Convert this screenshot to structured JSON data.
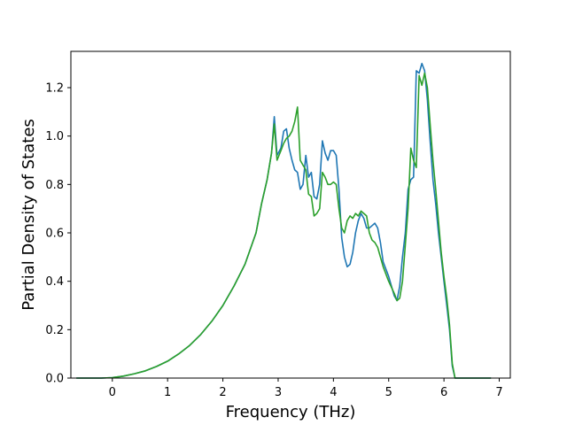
{
  "chart_data": {
    "type": "line",
    "title": "",
    "xlabel": "Frequency (THz)",
    "ylabel": "Partial Density of States",
    "xlim": [
      -0.75,
      7.2
    ],
    "ylim": [
      0.0,
      1.35
    ],
    "xticks": [
      0,
      1,
      2,
      3,
      4,
      5,
      6,
      7
    ],
    "xtick_labels": [
      "0",
      "1",
      "2",
      "3",
      "4",
      "5",
      "6",
      "7"
    ],
    "yticks": [
      0.0,
      0.2,
      0.4,
      0.6,
      0.8,
      1.0,
      1.2
    ],
    "ytick_labels": [
      "0.0",
      "0.2",
      "0.4",
      "0.6",
      "0.8",
      "1.0",
      "1.2"
    ],
    "grid": false,
    "legend": "none",
    "series": [
      {
        "color": "#1f77b4",
        "x": [
          -0.65,
          -0.2,
          0.0,
          0.2,
          0.4,
          0.6,
          0.8,
          1.0,
          1.2,
          1.4,
          1.6,
          1.8,
          2.0,
          2.2,
          2.4,
          2.6,
          2.7,
          2.8,
          2.88,
          2.93,
          2.98,
          3.05,
          3.1,
          3.15,
          3.2,
          3.25,
          3.3,
          3.35,
          3.4,
          3.45,
          3.5,
          3.55,
          3.6,
          3.65,
          3.7,
          3.75,
          3.8,
          3.85,
          3.9,
          3.95,
          4.0,
          4.05,
          4.1,
          4.15,
          4.2,
          4.25,
          4.3,
          4.35,
          4.4,
          4.45,
          4.5,
          4.55,
          4.6,
          4.65,
          4.7,
          4.75,
          4.8,
          4.85,
          4.9,
          5.0,
          5.1,
          5.15,
          5.2,
          5.25,
          5.3,
          5.35,
          5.4,
          5.45,
          5.5,
          5.55,
          5.6,
          5.65,
          5.7,
          5.75,
          5.8,
          5.85,
          5.9,
          5.95,
          6.0,
          6.05,
          6.1,
          6.15,
          6.2,
          6.25,
          6.3,
          6.5,
          6.85
        ],
        "y": [
          0.0,
          0.0,
          0.002,
          0.008,
          0.018,
          0.03,
          0.048,
          0.07,
          0.1,
          0.135,
          0.18,
          0.235,
          0.3,
          0.38,
          0.47,
          0.6,
          0.72,
          0.82,
          0.93,
          1.08,
          0.92,
          0.95,
          1.02,
          1.03,
          0.95,
          0.9,
          0.86,
          0.85,
          0.78,
          0.8,
          0.92,
          0.83,
          0.85,
          0.75,
          0.74,
          0.8,
          0.98,
          0.93,
          0.9,
          0.94,
          0.94,
          0.92,
          0.78,
          0.58,
          0.5,
          0.46,
          0.47,
          0.52,
          0.6,
          0.65,
          0.68,
          0.66,
          0.62,
          0.62,
          0.63,
          0.64,
          0.62,
          0.56,
          0.48,
          0.42,
          0.34,
          0.32,
          0.38,
          0.5,
          0.6,
          0.78,
          0.82,
          0.83,
          1.27,
          1.26,
          1.3,
          1.27,
          1.15,
          0.98,
          0.82,
          0.72,
          0.6,
          0.5,
          0.4,
          0.3,
          0.2,
          0.05,
          0.0,
          0.0,
          0.0,
          0.0,
          0.0
        ]
      },
      {
        "color": "#2ca02c",
        "x": [
          -0.65,
          -0.2,
          0.0,
          0.2,
          0.4,
          0.6,
          0.8,
          1.0,
          1.2,
          1.4,
          1.6,
          1.8,
          2.0,
          2.2,
          2.4,
          2.6,
          2.7,
          2.8,
          2.88,
          2.93,
          2.98,
          3.05,
          3.1,
          3.15,
          3.2,
          3.25,
          3.3,
          3.35,
          3.4,
          3.45,
          3.5,
          3.55,
          3.6,
          3.65,
          3.7,
          3.75,
          3.8,
          3.85,
          3.9,
          3.95,
          4.0,
          4.05,
          4.1,
          4.15,
          4.2,
          4.25,
          4.3,
          4.35,
          4.4,
          4.45,
          4.5,
          4.55,
          4.6,
          4.65,
          4.7,
          4.75,
          4.8,
          4.85,
          4.9,
          5.0,
          5.1,
          5.15,
          5.2,
          5.25,
          5.3,
          5.35,
          5.4,
          5.45,
          5.5,
          5.55,
          5.6,
          5.65,
          5.7,
          5.75,
          5.8,
          5.85,
          5.9,
          5.95,
          6.0,
          6.05,
          6.1,
          6.15,
          6.2,
          6.25,
          6.3,
          6.5,
          6.85
        ],
        "y": [
          0.0,
          0.0,
          0.002,
          0.008,
          0.018,
          0.03,
          0.048,
          0.07,
          0.1,
          0.135,
          0.18,
          0.235,
          0.3,
          0.38,
          0.47,
          0.6,
          0.72,
          0.82,
          0.93,
          1.05,
          0.9,
          0.94,
          0.97,
          0.99,
          1.0,
          1.02,
          1.06,
          1.12,
          0.9,
          0.88,
          0.86,
          0.76,
          0.75,
          0.67,
          0.68,
          0.7,
          0.85,
          0.83,
          0.8,
          0.8,
          0.81,
          0.8,
          0.7,
          0.62,
          0.6,
          0.65,
          0.67,
          0.66,
          0.68,
          0.67,
          0.69,
          0.68,
          0.67,
          0.6,
          0.57,
          0.56,
          0.54,
          0.5,
          0.46,
          0.4,
          0.35,
          0.32,
          0.33,
          0.4,
          0.55,
          0.7,
          0.95,
          0.9,
          0.87,
          1.25,
          1.21,
          1.26,
          1.2,
          1.05,
          0.9,
          0.78,
          0.65,
          0.52,
          0.42,
          0.33,
          0.22,
          0.06,
          0.0,
          0.0,
          0.0,
          0.0,
          0.0
        ]
      }
    ]
  }
}
